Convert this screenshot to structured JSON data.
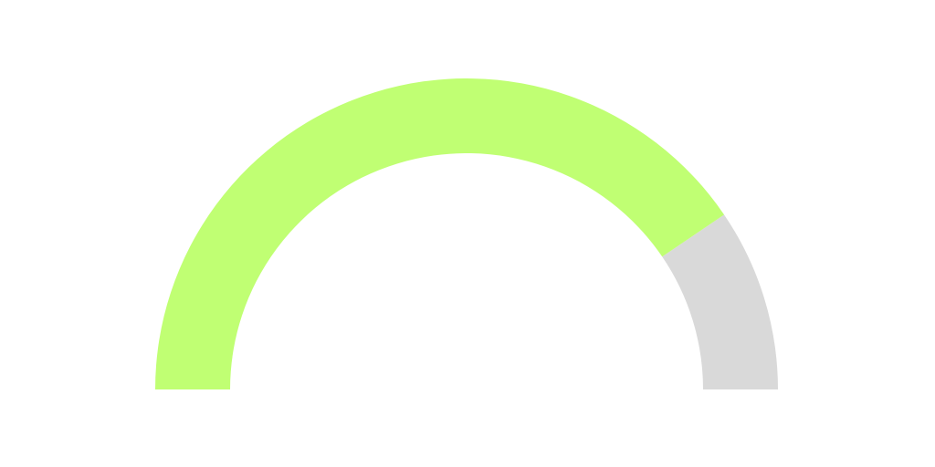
{
  "chart_data": {
    "type": "gauge",
    "value": 81,
    "range": [
      0,
      100
    ],
    "color": "#c0ff73",
    "track_color": "#d9d9d9"
  }
}
